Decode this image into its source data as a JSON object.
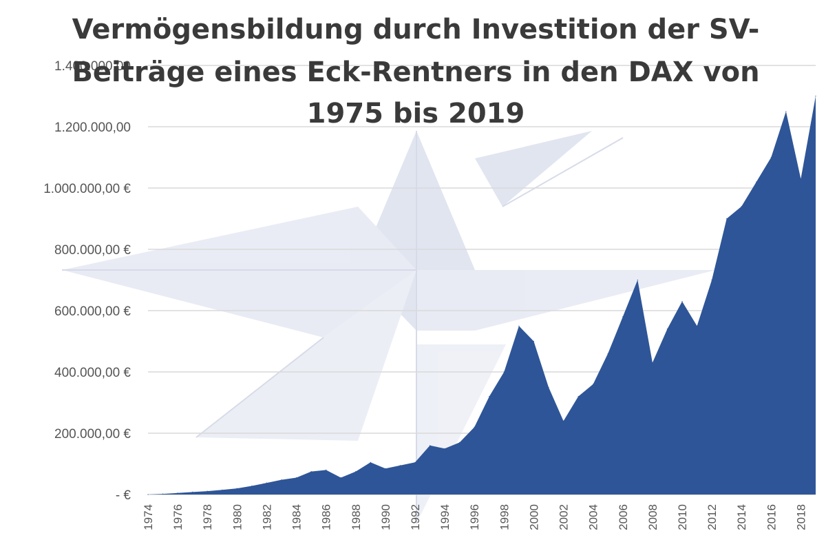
{
  "chart_data": {
    "type": "area",
    "title": "Vermögensbildung durch Investition der SV-Beiträge eines Eck-Rentners in den DAX von 1975 bis 2019",
    "title_lines": [
      "Vermögensbildung durch Investition der SV-",
      "Beiträge eines Eck-Rentners in den DAX von",
      "1975 bis 2019"
    ],
    "xlabel": "",
    "ylabel": "",
    "ylim": [
      0,
      1400000
    ],
    "grid": true,
    "legend": "none",
    "y_ticks": [
      {
        "value": 0,
        "label": "-   €"
      },
      {
        "value": 200000,
        "label": "200.000,00 €"
      },
      {
        "value": 400000,
        "label": "400.000,00 €"
      },
      {
        "value": 600000,
        "label": "600.000,00 €"
      },
      {
        "value": 800000,
        "label": "800.000,00 €"
      },
      {
        "value": 1000000,
        "label": "1.000.000,00 €"
      },
      {
        "value": 1200000,
        "label": "1.200.000,00"
      },
      {
        "value": 1400000,
        "label": "1.400.000,00"
      }
    ],
    "x_tick_labels": [
      "1974",
      "1976",
      "1978",
      "1980",
      "1982",
      "1984",
      "1986",
      "1988",
      "1990",
      "1992",
      "1994",
      "1996",
      "1998",
      "2000",
      "2002",
      "2004",
      "2006",
      "2008",
      "2010",
      "2012",
      "2014",
      "2016",
      "2018"
    ],
    "series_color": "#2e5597",
    "x": [
      1974,
      1975,
      1976,
      1977,
      1978,
      1979,
      1980,
      1981,
      1982,
      1983,
      1984,
      1985,
      1986,
      1987,
      1988,
      1989,
      1990,
      1991,
      1992,
      1993,
      1994,
      1995,
      1996,
      1997,
      1998,
      1999,
      2000,
      2001,
      2002,
      2003,
      2004,
      2005,
      2006,
      2007,
      2008,
      2009,
      2010,
      2011,
      2012,
      2013,
      2014,
      2015,
      2016,
      2017,
      2018,
      2019
    ],
    "values": [
      0,
      2000,
      5000,
      8000,
      11000,
      15000,
      20000,
      28000,
      38000,
      48000,
      55000,
      75000,
      80000,
      55000,
      75000,
      105000,
      85000,
      95000,
      105000,
      160000,
      150000,
      170000,
      220000,
      320000,
      400000,
      550000,
      500000,
      350000,
      240000,
      320000,
      360000,
      460000,
      580000,
      700000,
      430000,
      540000,
      630000,
      550000,
      700000,
      900000,
      940000,
      1020000,
      1100000,
      1250000,
      1030000,
      1300000
    ]
  }
}
